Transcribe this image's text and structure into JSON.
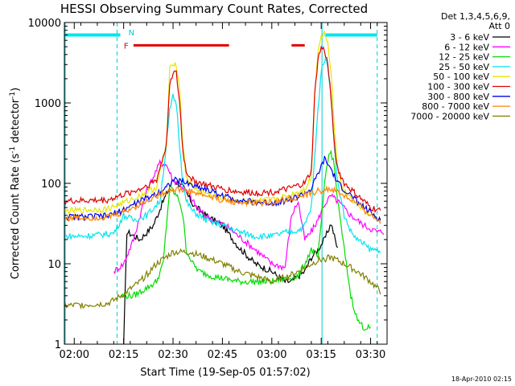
{
  "chart_data": {
    "type": "line",
    "title": "HESSI Observing Summary Count Rates, Corrected",
    "xlabel": "Start Time (19-Sep-05 01:57:02)",
    "ylabel_main": "Corrected Count Rate (s",
    "ylabel_sup1": "-1",
    "ylabel_mid": " detector",
    "ylabel_sup2": "-1",
    "ylabel_end": ")",
    "yscale": "log",
    "xlim": [
      "01:57",
      "03:35"
    ],
    "ylim": [
      1,
      10000
    ],
    "x_ticks": [
      "02:00",
      "02:15",
      "02:30",
      "02:45",
      "03:00",
      "03:15",
      "03:30"
    ],
    "y_ticks": [
      "1",
      "10",
      "100",
      "1000",
      "10000"
    ],
    "legend_header": [
      "Det 1,3,4,5,6,9,",
      "Att 0"
    ],
    "legend_position": "right",
    "footer": "18-Apr-2010 02:15",
    "flags": [
      {
        "label": "N",
        "color": "#00cccc",
        "t_start": "02:15",
        "t_end": "02:18"
      },
      {
        "label": "F",
        "color": "#e00000",
        "t_start": "02:18",
        "t_end": "02:47"
      },
      {
        "label": "",
        "color": "#e00000",
        "t_start": "03:06",
        "t_end": "03:10"
      }
    ],
    "cyan_bars": [
      {
        "t_start": "01:57",
        "t_end": "02:14"
      },
      {
        "t_start": "03:16",
        "t_end": "03:32"
      }
    ],
    "night_lines": [
      "02:13",
      "03:32"
    ],
    "day_lines": [
      "01:57",
      "03:15"
    ],
    "series": [
      {
        "name": "3 - 6 keV",
        "color": "#000000",
        "t": [
          "01:57",
          "02:12",
          "02:13",
          "02:15",
          "02:16",
          "02:20",
          "02:24",
          "02:27",
          "02:30",
          "02:33",
          "02:36",
          "02:40",
          "02:45",
          "02:50",
          "02:55",
          "03:00",
          "03:04",
          "03:06",
          "03:08",
          "03:10",
          "03:12",
          "03:14",
          "03:16",
          "03:18",
          "03:20",
          "03:22",
          "03:24"
        ],
        "values": [
          null,
          null,
          null,
          1,
          25,
          20,
          30,
          60,
          110,
          90,
          55,
          40,
          30,
          16,
          10,
          8,
          6,
          6,
          7,
          8,
          12,
          15,
          20,
          32,
          15,
          null,
          null
        ]
      },
      {
        "name": "6 - 12 keV",
        "color": "#ff00ff",
        "t": [
          "01:57",
          "02:08",
          "02:12",
          "02:15",
          "02:18",
          "02:22",
          "02:26",
          "02:28",
          "02:30",
          "02:32",
          "02:35",
          "02:38",
          "02:42",
          "02:46",
          "02:50",
          "02:55",
          "03:00",
          "03:04",
          "03:06",
          "03:08",
          "03:10",
          "03:12",
          "03:14",
          "03:16",
          "03:18",
          "03:20",
          "03:24",
          "03:28",
          "03:32",
          "03:34"
        ],
        "values": [
          null,
          null,
          8,
          10,
          20,
          80,
          180,
          170,
          110,
          100,
          70,
          45,
          35,
          30,
          22,
          15,
          10,
          9,
          40,
          60,
          20,
          25,
          35,
          55,
          70,
          60,
          40,
          30,
          25,
          25
        ]
      },
      {
        "name": "12 - 25 keV",
        "color": "#00dd00",
        "t": [
          "01:57",
          "02:10",
          "02:14",
          "02:18",
          "02:22",
          "02:25",
          "02:27",
          "02:28",
          "02:29",
          "02:30",
          "02:31",
          "02:32",
          "02:33",
          "02:34",
          "02:36",
          "02:38",
          "02:42",
          "02:50",
          "03:00",
          "03:08",
          "03:10",
          "03:12",
          "03:14",
          "03:15",
          "03:16",
          "03:17",
          "03:18",
          "03:19",
          "03:20",
          "03:22",
          "03:24",
          "03:26",
          "03:28",
          "03:30"
        ],
        "values": [
          null,
          null,
          4,
          4,
          5,
          6,
          10,
          30,
          90,
          80,
          70,
          60,
          40,
          15,
          10,
          8,
          7,
          6,
          6,
          7,
          10,
          15,
          12,
          30,
          100,
          200,
          250,
          160,
          60,
          15,
          4,
          2,
          1.6,
          1.6
        ]
      },
      {
        "name": "25 - 50 keV",
        "color": "#00e5ee",
        "t": [
          "01:57",
          "02:02",
          "02:08",
          "02:12",
          "02:15",
          "02:18",
          "02:22",
          "02:26",
          "02:28",
          "02:29",
          "02:30",
          "02:31",
          "02:32",
          "02:33",
          "02:34",
          "02:36",
          "02:40",
          "02:45",
          "02:50",
          "02:55",
          "03:00",
          "03:05",
          "03:08",
          "03:10",
          "03:12",
          "03:13",
          "03:14",
          "03:15",
          "03:16",
          "03:17",
          "03:18",
          "03:19",
          "03:20",
          "03:22",
          "03:24",
          "03:26",
          "03:30",
          "03:33"
        ],
        "values": [
          22,
          22,
          23,
          24,
          40,
          35,
          40,
          60,
          300,
          800,
          1200,
          1000,
          300,
          100,
          60,
          45,
          35,
          30,
          25,
          22,
          22,
          25,
          26,
          30,
          50,
          200,
          800,
          2500,
          3500,
          3000,
          1200,
          300,
          100,
          40,
          25,
          20,
          15,
          15
        ]
      },
      {
        "name": "50 - 100 keV",
        "color": "#e6e600",
        "t": [
          "01:57",
          "02:10",
          "02:14",
          "02:20",
          "02:25",
          "02:28",
          "02:29",
          "02:30",
          "02:31",
          "02:32",
          "02:33",
          "02:34",
          "02:36",
          "02:40",
          "02:45",
          "02:50",
          "02:55",
          "03:00",
          "03:05",
          "03:10",
          "03:12",
          "03:13",
          "03:14",
          "03:15",
          "03:16",
          "03:17",
          "03:18",
          "03:19",
          "03:20",
          "03:22",
          "03:26",
          "03:30",
          "03:33"
        ],
        "values": [
          45,
          48,
          55,
          70,
          90,
          300,
          2500,
          3200,
          3000,
          1500,
          300,
          120,
          90,
          75,
          65,
          60,
          60,
          62,
          70,
          85,
          120,
          1200,
          4500,
          6800,
          7500,
          5500,
          2500,
          500,
          150,
          80,
          55,
          40,
          35
        ]
      },
      {
        "name": "100 - 300 keV",
        "color": "#dd0000",
        "t": [
          "01:57",
          "02:10",
          "02:14",
          "02:20",
          "02:25",
          "02:28",
          "02:29",
          "02:30",
          "02:31",
          "02:32",
          "02:33",
          "02:34",
          "02:36",
          "02:40",
          "02:45",
          "02:50",
          "02:55",
          "03:00",
          "03:05",
          "03:10",
          "03:12",
          "03:13",
          "03:14",
          "03:15",
          "03:16",
          "03:17",
          "03:18",
          "03:19",
          "03:20",
          "03:22",
          "03:26",
          "03:30",
          "03:33"
        ],
        "values": [
          60,
          62,
          70,
          85,
          110,
          300,
          1800,
          2400,
          2300,
          1000,
          250,
          140,
          110,
          95,
          85,
          78,
          76,
          78,
          85,
          100,
          140,
          1200,
          3500,
          4800,
          4500,
          3000,
          1200,
          300,
          150,
          100,
          70,
          50,
          45
        ]
      },
      {
        "name": "300 - 800 keV",
        "color": "#0000ee",
        "t": [
          "01:57",
          "02:10",
          "02:14",
          "02:20",
          "02:25",
          "02:28",
          "02:30",
          "02:33",
          "02:36",
          "02:40",
          "02:45",
          "02:50",
          "02:55",
          "03:00",
          "03:05",
          "03:08",
          "03:10",
          "03:12",
          "03:14",
          "03:16",
          "03:18",
          "03:20",
          "03:24",
          "03:28",
          "03:33"
        ],
        "values": [
          38,
          39,
          45,
          60,
          75,
          90,
          110,
          105,
          95,
          85,
          70,
          62,
          58,
          57,
          62,
          68,
          75,
          85,
          130,
          200,
          150,
          100,
          70,
          50,
          35
        ]
      },
      {
        "name": "800 - 7000 keV",
        "color": "#ff8000",
        "t": [
          "01:57",
          "02:10",
          "02:14",
          "02:20",
          "02:25",
          "02:30",
          "02:35",
          "02:40",
          "02:45",
          "02:50",
          "02:55",
          "03:00",
          "03:05",
          "03:10",
          "03:14",
          "03:18",
          "03:22",
          "03:26",
          "03:30",
          "03:33"
        ],
        "values": [
          37,
          38,
          42,
          55,
          70,
          85,
          80,
          70,
          62,
          58,
          57,
          58,
          64,
          70,
          80,
          85,
          70,
          55,
          40,
          33
        ]
      },
      {
        "name": "7000 - 20000 keV",
        "color": "#808000",
        "t": [
          "01:57",
          "02:10",
          "02:12",
          "02:16",
          "02:20",
          "02:25",
          "02:30",
          "02:35",
          "02:40",
          "02:45",
          "02:50",
          "02:55",
          "03:00",
          "03:05",
          "03:08",
          "03:10",
          "03:14",
          "03:18",
          "03:22",
          "03:26",
          "03:30",
          "03:33"
        ],
        "values": [
          3,
          3.2,
          3.5,
          4.5,
          6,
          10,
          14,
          14,
          12,
          10,
          8,
          7,
          6,
          7,
          8,
          9,
          11,
          12,
          10,
          8,
          6,
          4.5
        ]
      }
    ]
  }
}
